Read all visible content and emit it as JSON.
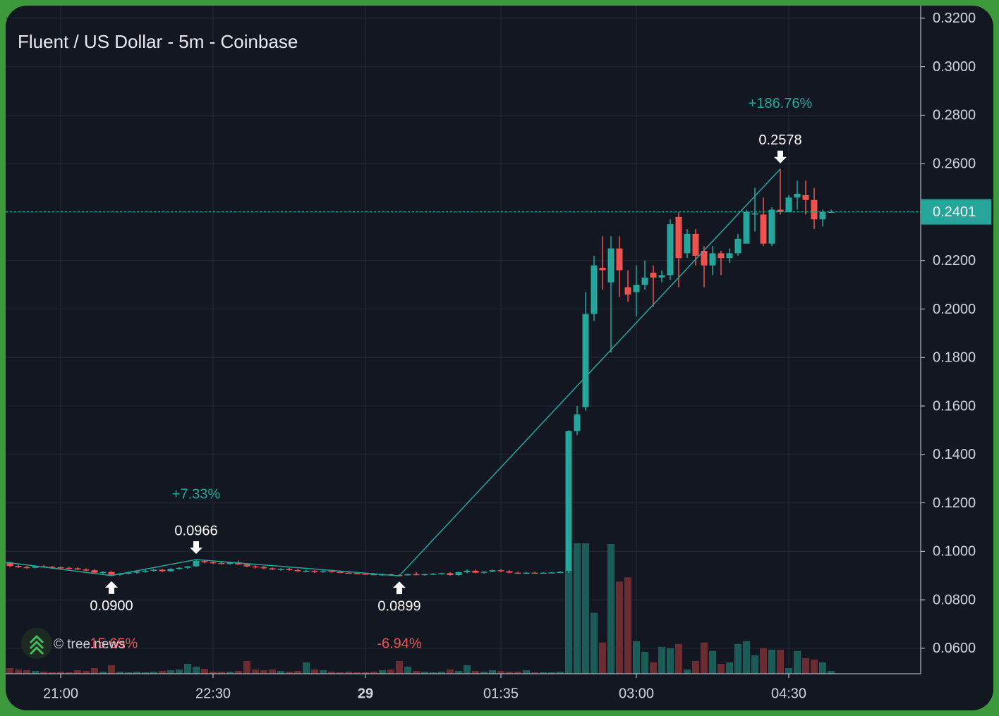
{
  "chart_data": {
    "type": "candlestick",
    "title": "Fluent / US Dollar - 5m - Coinbase",
    "watermark": "© tree.news",
    "colors": {
      "up": "#26a69a",
      "down": "#ef5350",
      "up_volume": "#1b5c59",
      "down_volume": "#6b2c31"
    },
    "grid": true,
    "ylim": [
      0.0495,
      0.3252
    ],
    "yticks": [
      {
        "value": 0.06,
        "label": "0.0600"
      },
      {
        "value": 0.08,
        "label": "0.0800"
      },
      {
        "value": 0.1,
        "label": "0.1000"
      },
      {
        "value": 0.12,
        "label": "0.1200"
      },
      {
        "value": 0.14,
        "label": "0.1400"
      },
      {
        "value": 0.16,
        "label": "0.1600"
      },
      {
        "value": 0.18,
        "label": "0.1800"
      },
      {
        "value": 0.2,
        "label": "0.2000"
      },
      {
        "value": 0.22,
        "label": "0.2200"
      },
      {
        "value": 0.24,
        "label": "0.2400"
      },
      {
        "value": 0.26,
        "label": "0.2600"
      },
      {
        "value": 0.28,
        "label": "0.2800"
      },
      {
        "value": 0.3,
        "label": "0.3000"
      },
      {
        "value": 0.32,
        "label": "0.3200"
      }
    ],
    "last_price": {
      "value": 0.2401,
      "label": "0.2401"
    },
    "categories": [
      null,
      null,
      null,
      null,
      null,
      null,
      "21:00",
      null,
      null,
      null,
      null,
      null,
      null,
      null,
      null,
      null,
      null,
      null,
      null,
      null,
      null,
      null,
      null,
      null,
      "22:30",
      null,
      null,
      null,
      null,
      null,
      null,
      null,
      null,
      null,
      null,
      null,
      null,
      null,
      null,
      null,
      null,
      null,
      "29",
      null,
      null,
      null,
      null,
      null,
      null,
      null,
      null,
      null,
      null,
      null,
      null,
      null,
      null,
      null,
      "01:35",
      null,
      null,
      null,
      null,
      null,
      null,
      null,
      null,
      null,
      null,
      null,
      null,
      null,
      null,
      null,
      "03:00",
      null,
      null,
      null,
      null,
      null,
      null,
      null,
      null,
      null,
      null,
      null,
      null,
      null,
      null,
      null,
      null,
      null,
      "04:30",
      null,
      null,
      null,
      null,
      null
    ],
    "candles": [
      [
        0.0955,
        0.0957,
        0.0935,
        0.094,
        8
      ],
      [
        0.094,
        0.0945,
        0.0932,
        0.0935,
        6
      ],
      [
        0.0935,
        0.094,
        0.0928,
        0.0932,
        5
      ],
      [
        0.0932,
        0.0942,
        0.093,
        0.0938,
        4
      ],
      [
        0.0938,
        0.0943,
        0.0933,
        0.0936,
        3
      ],
      [
        0.0936,
        0.094,
        0.093,
        0.0934,
        2
      ],
      [
        0.0934,
        0.0938,
        0.0928,
        0.0932,
        3
      ],
      [
        0.0932,
        0.0936,
        0.0926,
        0.093,
        2
      ],
      [
        0.093,
        0.0934,
        0.0922,
        0.0925,
        5
      ],
      [
        0.0925,
        0.093,
        0.0918,
        0.0922,
        4
      ],
      [
        0.0922,
        0.0926,
        0.091,
        0.0912,
        8
      ],
      [
        0.0912,
        0.0918,
        0.0905,
        0.0915,
        3
      ],
      [
        0.0915,
        0.0918,
        0.09,
        0.0903,
        12
      ],
      [
        0.0903,
        0.091,
        0.09,
        0.0908,
        3
      ],
      [
        0.0908,
        0.0915,
        0.0905,
        0.0912,
        2
      ],
      [
        0.0912,
        0.092,
        0.0908,
        0.0917,
        3
      ],
      [
        0.0917,
        0.0925,
        0.0912,
        0.092,
        2
      ],
      [
        0.092,
        0.0928,
        0.0916,
        0.0924,
        3
      ],
      [
        0.0924,
        0.0928,
        0.0915,
        0.0918,
        4
      ],
      [
        0.0918,
        0.093,
        0.0916,
        0.0928,
        5
      ],
      [
        0.0928,
        0.0935,
        0.0924,
        0.0932,
        6
      ],
      [
        0.0932,
        0.094,
        0.0928,
        0.0938,
        14
      ],
      [
        0.0938,
        0.0966,
        0.0936,
        0.096,
        10
      ],
      [
        0.096,
        0.0962,
        0.095,
        0.0955,
        7
      ],
      [
        0.0955,
        0.0958,
        0.0948,
        0.0952,
        3
      ],
      [
        0.0952,
        0.0956,
        0.0945,
        0.0948,
        3
      ],
      [
        0.0948,
        0.0956,
        0.0945,
        0.0954,
        3
      ],
      [
        0.0954,
        0.0962,
        0.0944,
        0.0946,
        4
      ],
      [
        0.0946,
        0.095,
        0.0935,
        0.0938,
        18
      ],
      [
        0.0938,
        0.0942,
        0.093,
        0.0935,
        6
      ],
      [
        0.0935,
        0.094,
        0.0926,
        0.093,
        5
      ],
      [
        0.093,
        0.0934,
        0.0922,
        0.0925,
        6
      ],
      [
        0.0925,
        0.093,
        0.092,
        0.0928,
        4
      ],
      [
        0.0928,
        0.0932,
        0.092,
        0.0923,
        3
      ],
      [
        0.0923,
        0.0927,
        0.0915,
        0.0918,
        4
      ],
      [
        0.0918,
        0.0924,
        0.0914,
        0.092,
        16
      ],
      [
        0.092,
        0.0922,
        0.091,
        0.0915,
        6
      ],
      [
        0.0915,
        0.0922,
        0.0912,
        0.0918,
        5
      ],
      [
        0.0918,
        0.0922,
        0.0912,
        0.0915,
        3
      ],
      [
        0.0915,
        0.0918,
        0.091,
        0.0912,
        2
      ],
      [
        0.0912,
        0.0916,
        0.0908,
        0.091,
        3
      ],
      [
        0.091,
        0.0914,
        0.0905,
        0.0908,
        2
      ],
      [
        0.0908,
        0.0912,
        0.0904,
        0.0906,
        2
      ],
      [
        0.0906,
        0.091,
        0.0902,
        0.0904,
        3
      ],
      [
        0.0904,
        0.0908,
        0.09,
        0.0905,
        5
      ],
      [
        0.0905,
        0.0908,
        0.0899,
        0.0902,
        6
      ],
      [
        0.0902,
        0.0906,
        0.0899,
        0.0901,
        18
      ],
      [
        0.0901,
        0.0908,
        0.09,
        0.0906,
        10
      ],
      [
        0.0906,
        0.0915,
        0.0902,
        0.0904,
        4
      ],
      [
        0.0904,
        0.0908,
        0.09,
        0.0906,
        3
      ],
      [
        0.0906,
        0.091,
        0.0902,
        0.0908,
        2
      ],
      [
        0.0908,
        0.0912,
        0.0904,
        0.091,
        3
      ],
      [
        0.091,
        0.0914,
        0.09,
        0.0902,
        6
      ],
      [
        0.0902,
        0.0916,
        0.09,
        0.0914,
        4
      ],
      [
        0.0914,
        0.0925,
        0.091,
        0.092,
        12
      ],
      [
        0.092,
        0.0925,
        0.091,
        0.0912,
        4
      ],
      [
        0.0912,
        0.0918,
        0.0908,
        0.0916,
        3
      ],
      [
        0.0916,
        0.0925,
        0.0914,
        0.0922,
        5
      ],
      [
        0.0922,
        0.0926,
        0.0914,
        0.0918,
        4
      ],
      [
        0.0918,
        0.0922,
        0.091,
        0.0912,
        3
      ],
      [
        0.0912,
        0.0916,
        0.0908,
        0.091,
        3
      ],
      [
        0.091,
        0.0914,
        0.0906,
        0.0912,
        5
      ],
      [
        0.0912,
        0.0916,
        0.0908,
        0.091,
        2
      ],
      [
        0.091,
        0.0914,
        0.0908,
        0.0912,
        2
      ],
      [
        0.0912,
        0.0915,
        0.0909,
        0.0913,
        2
      ],
      [
        0.0913,
        0.0918,
        0.091,
        0.0915,
        3
      ],
      [
        0.092,
        0.15,
        0.091,
        0.1496,
        146
      ],
      [
        0.1496,
        0.16,
        0.148,
        0.1565,
        184
      ],
      [
        0.1595,
        0.207,
        0.158,
        0.198,
        184
      ],
      [
        0.198,
        0.222,
        0.195,
        0.218,
        86
      ],
      [
        0.217,
        0.23,
        0.208,
        0.216,
        44
      ],
      [
        0.211,
        0.23,
        0.182,
        0.225,
        183
      ],
      [
        0.225,
        0.23,
        0.205,
        0.216,
        130
      ],
      [
        0.209,
        0.216,
        0.203,
        0.206,
        136
      ],
      [
        0.207,
        0.218,
        0.197,
        0.21,
        46
      ],
      [
        0.21,
        0.22,
        0.208,
        0.213,
        31
      ],
      [
        0.215,
        0.218,
        0.201,
        0.213,
        16
      ],
      [
        0.213,
        0.216,
        0.211,
        0.214,
        38
      ],
      [
        0.214,
        0.237,
        0.212,
        0.235,
        36
      ],
      [
        0.238,
        0.24,
        0.209,
        0.221,
        42
      ],
      [
        0.223,
        0.233,
        0.221,
        0.231,
        6
      ],
      [
        0.231,
        0.233,
        0.218,
        0.222,
        18
      ],
      [
        0.224,
        0.226,
        0.209,
        0.218,
        44
      ],
      [
        0.218,
        0.226,
        0.214,
        0.223,
        32
      ],
      [
        0.223,
        0.224,
        0.214,
        0.221,
        14
      ],
      [
        0.221,
        0.225,
        0.219,
        0.223,
        16
      ],
      [
        0.223,
        0.231,
        0.222,
        0.229,
        42
      ],
      [
        0.227,
        0.241,
        0.227,
        0.24,
        46
      ],
      [
        0.239,
        0.25,
        0.232,
        0.2395,
        26
      ],
      [
        0.239,
        0.246,
        0.226,
        0.227,
        36
      ],
      [
        0.227,
        0.242,
        0.226,
        0.241,
        34
      ],
      [
        0.241,
        0.2578,
        0.239,
        0.24,
        34
      ],
      [
        0.24,
        0.247,
        0.24,
        0.246,
        8
      ],
      [
        0.246,
        0.253,
        0.241,
        0.2476,
        32
      ],
      [
        0.247,
        0.253,
        0.239,
        0.245,
        22
      ],
      [
        0.245,
        0.25,
        0.233,
        0.237,
        20
      ],
      [
        0.237,
        0.241,
        0.234,
        0.24,
        16
      ],
      [
        0.24,
        0.241,
        0.2398,
        0.2401,
        4
      ]
    ],
    "annotations": [
      {
        "index": 12,
        "kind": "low",
        "value": 0.09,
        "label": "0.0900",
        "change": "-15.65%"
      },
      {
        "index": 22,
        "kind": "high",
        "value": 0.0966,
        "label": "0.0966",
        "change": "+7.33%"
      },
      {
        "index": 46,
        "kind": "low",
        "value": 0.0899,
        "label": "0.0899",
        "change": "-6.94%"
      },
      {
        "index": 91,
        "kind": "high",
        "value": 0.2578,
        "label": "0.2578",
        "change": "+186.76%"
      }
    ]
  }
}
